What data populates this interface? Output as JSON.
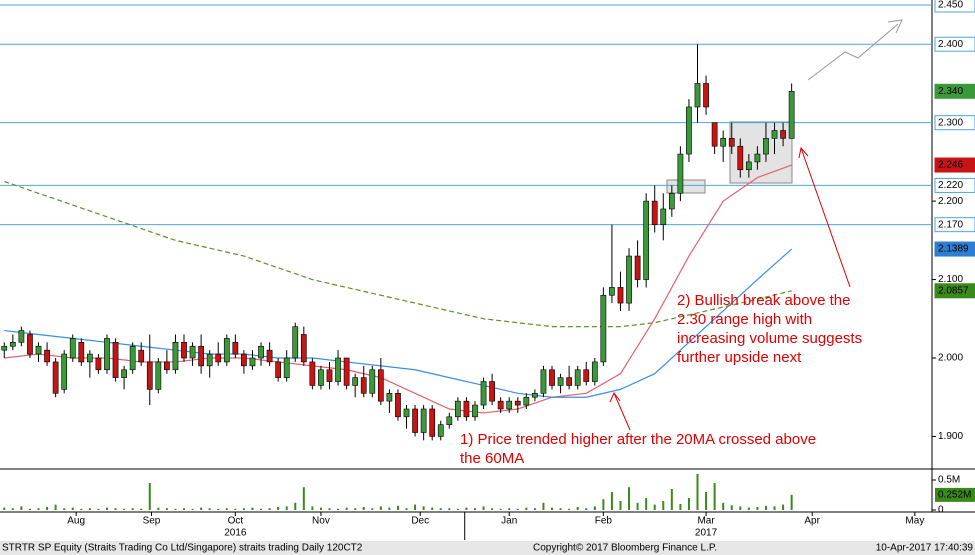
{
  "chart_data": {
    "type": "candlestick",
    "x": [
      0,
      1,
      2,
      3,
      4,
      5,
      6,
      7,
      8,
      9,
      10,
      11,
      12,
      13,
      14,
      15,
      16,
      17,
      18,
      19,
      20,
      21,
      22,
      23,
      24,
      25,
      26,
      27,
      28,
      29,
      30,
      31,
      32,
      33,
      34,
      35,
      36,
      37,
      38,
      39,
      40,
      41,
      42,
      43,
      44,
      45,
      46,
      47,
      48,
      49,
      50,
      51,
      52,
      53,
      54,
      55,
      56,
      57,
      58,
      59,
      60,
      61,
      62,
      63,
      64,
      65,
      66,
      67,
      68,
      69,
      70,
      71,
      72,
      73,
      74,
      75,
      76,
      77,
      78,
      79,
      80,
      81,
      82,
      83,
      84,
      85,
      86,
      87,
      88,
      89,
      90,
      91,
      92
    ],
    "ohlc": [
      [
        2.01,
        2.02,
        2.0,
        2.015
      ],
      [
        2.015,
        2.03,
        2.01,
        2.02
      ],
      [
        2.02,
        2.04,
        2.015,
        2.035
      ],
      [
        2.03,
        2.035,
        2.0,
        2.005
      ],
      [
        2.005,
        2.02,
        1.995,
        2.015
      ],
      [
        2.01,
        2.02,
        1.99,
        1.995
      ],
      [
        1.995,
        2.0,
        1.95,
        1.955
      ],
      [
        1.96,
        2.01,
        1.955,
        2.005
      ],
      [
        2.0,
        2.03,
        1.995,
        2.025
      ],
      [
        2.02,
        2.025,
        1.99,
        1.995
      ],
      [
        1.995,
        2.01,
        1.975,
        2.005
      ],
      [
        2.0,
        2.005,
        1.98,
        1.985
      ],
      [
        1.985,
        2.03,
        1.98,
        2.025
      ],
      [
        2.02,
        2.025,
        1.97,
        1.975
      ],
      [
        1.975,
        1.99,
        1.96,
        1.985
      ],
      [
        1.985,
        2.02,
        1.98,
        2.015
      ],
      [
        2.01,
        2.02,
        1.99,
        1.995
      ],
      [
        1.995,
        2.03,
        1.94,
        1.96
      ],
      [
        1.96,
        2.0,
        1.955,
        1.995
      ],
      [
        1.995,
        2.01,
        1.98,
        1.985
      ],
      [
        1.985,
        2.03,
        1.98,
        2.02
      ],
      [
        2.02,
        2.03,
        1.995,
        2.0
      ],
      [
        2.0,
        2.02,
        1.99,
        2.015
      ],
      [
        2.015,
        2.03,
        1.98,
        1.99
      ],
      [
        1.99,
        2.01,
        1.975,
        2.005
      ],
      [
        2.005,
        2.02,
        1.99,
        1.995
      ],
      [
        1.995,
        2.03,
        1.99,
        2.025
      ],
      [
        2.02,
        2.03,
        2.0,
        2.005
      ],
      [
        2.005,
        2.01,
        1.98,
        1.99
      ],
      [
        1.99,
        2.01,
        1.985,
        2.0
      ],
      [
        2.0,
        2.02,
        1.99,
        2.015
      ],
      [
        2.01,
        2.02,
        1.99,
        1.995
      ],
      [
        1.995,
        2.0,
        1.97,
        1.975
      ],
      [
        1.975,
        2.01,
        1.97,
        2.0
      ],
      [
        2.0,
        2.045,
        1.995,
        2.04
      ],
      [
        2.03,
        2.04,
        1.99,
        1.995
      ],
      [
        1.995,
        2.0,
        1.96,
        1.965
      ],
      [
        1.965,
        1.99,
        1.96,
        1.985
      ],
      [
        1.985,
        1.995,
        1.96,
        1.97
      ],
      [
        1.97,
        2.01,
        1.965,
        2.0
      ],
      [
        2.0,
        2.0,
        1.96,
        1.965
      ],
      [
        1.965,
        1.98,
        1.95,
        1.975
      ],
      [
        1.975,
        1.99,
        1.95,
        1.955
      ],
      [
        1.955,
        1.99,
        1.95,
        1.985
      ],
      [
        1.985,
        2.0,
        1.94,
        1.945
      ],
      [
        1.945,
        1.96,
        1.93,
        1.955
      ],
      [
        1.955,
        1.96,
        1.92,
        1.925
      ],
      [
        1.925,
        1.94,
        1.91,
        1.935
      ],
      [
        1.935,
        1.94,
        1.9,
        1.905
      ],
      [
        1.905,
        1.94,
        1.895,
        1.935
      ],
      [
        1.935,
        1.94,
        1.895,
        1.9
      ],
      [
        1.9,
        1.92,
        1.895,
        1.915
      ],
      [
        1.915,
        1.93,
        1.91,
        1.925
      ],
      [
        1.925,
        1.95,
        1.92,
        1.945
      ],
      [
        1.945,
        1.95,
        1.92,
        1.925
      ],
      [
        1.925,
        1.945,
        1.92,
        1.94
      ],
      [
        1.94,
        1.975,
        1.935,
        1.97
      ],
      [
        1.97,
        1.98,
        1.94,
        1.945
      ],
      [
        1.945,
        1.95,
        1.93,
        1.935
      ],
      [
        1.935,
        1.95,
        1.93,
        1.945
      ],
      [
        1.945,
        1.95,
        1.93,
        1.94
      ],
      [
        1.94,
        1.955,
        1.935,
        1.95
      ],
      [
        1.95,
        1.96,
        1.945,
        1.955
      ],
      [
        1.955,
        1.99,
        1.95,
        1.985
      ],
      [
        1.985,
        1.99,
        1.96,
        1.965
      ],
      [
        1.965,
        1.98,
        1.955,
        1.975
      ],
      [
        1.975,
        1.99,
        1.96,
        1.965
      ],
      [
        1.965,
        1.99,
        1.96,
        1.985
      ],
      [
        1.985,
        1.995,
        1.965,
        1.97
      ],
      [
        1.97,
        2.0,
        1.965,
        1.995
      ],
      [
        1.995,
        2.09,
        1.99,
        2.08
      ],
      [
        2.08,
        2.17,
        2.07,
        2.09
      ],
      [
        2.09,
        2.11,
        2.06,
        2.07
      ],
      [
        2.07,
        2.14,
        2.06,
        2.13
      ],
      [
        2.13,
        2.15,
        2.09,
        2.1
      ],
      [
        2.1,
        2.21,
        2.09,
        2.2
      ],
      [
        2.2,
        2.22,
        2.16,
        2.17
      ],
      [
        2.17,
        2.21,
        2.15,
        2.19
      ],
      [
        2.19,
        2.22,
        2.18,
        2.21
      ],
      [
        2.21,
        2.27,
        2.2,
        2.26
      ],
      [
        2.26,
        2.33,
        2.25,
        2.32
      ],
      [
        2.32,
        2.4,
        2.3,
        2.35
      ],
      [
        2.35,
        2.36,
        2.31,
        2.32
      ],
      [
        2.3,
        2.3,
        2.26,
        2.27
      ],
      [
        2.27,
        2.29,
        2.25,
        2.28
      ],
      [
        2.28,
        2.3,
        2.26,
        2.27
      ],
      [
        2.27,
        2.28,
        2.23,
        2.24
      ],
      [
        2.24,
        2.26,
        2.23,
        2.25
      ],
      [
        2.25,
        2.27,
        2.24,
        2.26
      ],
      [
        2.26,
        2.3,
        2.25,
        2.28
      ],
      [
        2.28,
        2.3,
        2.26,
        2.29
      ],
      [
        2.29,
        2.3,
        2.27,
        2.28
      ],
      [
        2.28,
        2.35,
        2.28,
        2.34
      ]
    ],
    "up_color": "#3a9a3a",
    "down_color": "#c81414",
    "volume": [
      40000,
      30000,
      60000,
      20000,
      30000,
      50000,
      90000,
      30000,
      40000,
      20000,
      30000,
      20000,
      40000,
      30000,
      20000,
      30000,
      20000,
      450000,
      40000,
      30000,
      20000,
      30000,
      20000,
      40000,
      30000,
      20000,
      30000,
      20000,
      30000,
      40000,
      20000,
      30000,
      50000,
      60000,
      120000,
      380000,
      60000,
      40000,
      30000,
      20000,
      40000,
      30000,
      50000,
      30000,
      60000,
      40000,
      70000,
      30000,
      90000,
      60000,
      40000,
      30000,
      30000,
      20000,
      40000,
      30000,
      60000,
      30000,
      20000,
      30000,
      20000,
      40000,
      30000,
      120000,
      40000,
      30000,
      20000,
      50000,
      30000,
      60000,
      180000,
      300000,
      150000,
      380000,
      120000,
      200000,
      90000,
      150000,
      350000,
      100000,
      200000,
      600000,
      300000,
      450000,
      120000,
      80000,
      60000,
      40000,
      50000,
      70000,
      60000,
      90000,
      252000
    ],
    "volume_color": "#3a8a1a",
    "volume_ylim": [
      0,
      600000
    ],
    "volume_yticks": [
      {
        "value": 500000,
        "label": "0.5M"
      },
      0
    ],
    "volume_tag": {
      "value": 252000,
      "label": "0.252M"
    },
    "moving_averages": [
      {
        "color": "#e8606a",
        "dash": false,
        "x": [
          0,
          4,
          8,
          12,
          16,
          20,
          24,
          28,
          32,
          36,
          40,
          44,
          48,
          52,
          56,
          60,
          64,
          68,
          72,
          76,
          80,
          84,
          88,
          92
        ],
        "values": [
          2.0,
          2.005,
          2.0,
          2.0,
          1.995,
          1.995,
          2.0,
          2.0,
          1.995,
          1.99,
          1.985,
          1.975,
          1.955,
          1.935,
          1.93,
          1.935,
          1.95,
          1.955,
          1.98,
          2.05,
          2.13,
          2.2,
          2.23,
          2.246
        ],
        "tag": {
          "value": 2.246,
          "label": "2.246"
        }
      },
      {
        "color": "#3a8fe0",
        "dash": false,
        "x": [
          0,
          4,
          8,
          12,
          16,
          20,
          24,
          28,
          32,
          36,
          40,
          44,
          48,
          52,
          56,
          60,
          64,
          68,
          72,
          76,
          80,
          84,
          88,
          92
        ],
        "values": [
          2.035,
          2.03,
          2.025,
          2.02,
          2.015,
          2.01,
          2.005,
          2.005,
          2.0,
          2.0,
          1.995,
          1.99,
          1.985,
          1.975,
          1.965,
          1.955,
          1.95,
          1.95,
          1.96,
          1.98,
          2.02,
          2.06,
          2.1,
          2.1389
        ],
        "tag": {
          "value": 2.1389,
          "label": "2.1389"
        }
      },
      {
        "color": "#5f8f2a",
        "dash": true,
        "x": [
          0,
          4,
          8,
          12,
          16,
          20,
          24,
          28,
          32,
          36,
          40,
          44,
          48,
          52,
          56,
          60,
          64,
          68,
          72,
          76,
          80,
          84,
          88,
          92
        ],
        "values": [
          2.225,
          2.21,
          2.195,
          2.18,
          2.165,
          2.15,
          2.14,
          2.13,
          2.115,
          2.1,
          2.09,
          2.08,
          2.07,
          2.06,
          2.05,
          2.045,
          2.04,
          2.04,
          2.04,
          2.045,
          2.055,
          2.065,
          2.075,
          2.0857
        ],
        "tag": {
          "value": 2.0857,
          "label": "2.0857"
        }
      }
    ],
    "last_price_tag": {
      "value": 2.34,
      "label": "2.340"
    },
    "levels": [
      {
        "value": 2.45,
        "label": "2.450"
      },
      {
        "value": 2.4,
        "label": "2.400"
      },
      {
        "value": 2.3,
        "label": "2.300"
      },
      {
        "value": 2.22,
        "label": "2.220"
      },
      {
        "value": 2.17,
        "label": "2.170"
      }
    ],
    "ylim": [
      1.8585,
      2.4564
    ],
    "yticks": [
      {
        "value": 1.9,
        "label": "1.900"
      },
      {
        "value": 2.0,
        "label": "2.000"
      },
      {
        "value": 2.1,
        "label": "2.100"
      },
      {
        "value": 2.2,
        "label": "2.200"
      }
    ],
    "xlim": [
      -0.5,
      108.4
    ],
    "xticks": [
      {
        "value": 8.4,
        "label": "Aug"
      },
      {
        "value": 17.2,
        "label": "Sep"
      },
      {
        "value": 27,
        "label": "Oct"
      },
      {
        "value": 37,
        "label": "Nov"
      },
      {
        "value": 48.6,
        "label": "Dec"
      },
      {
        "value": 59,
        "label": "Jan"
      },
      {
        "value": 70,
        "label": "Feb"
      },
      {
        "value": 82,
        "label": "Mar"
      },
      {
        "value": 94.4,
        "label": "Apr"
      },
      {
        "value": 106.4,
        "label": "May"
      }
    ],
    "year_labels": [
      {
        "value": 27,
        "label": "2016"
      },
      {
        "value": 82,
        "label": "2017"
      }
    ],
    "year_break": 53.8,
    "annotations": [
      {
        "lines": [
          "1) Price trended higher after the 20MA crossed above",
          "the 60MA"
        ]
      },
      {
        "lines": [
          "2) Bullish break above the",
          "2.30 range high with",
          "increasing volume suggests",
          "further upside next"
        ]
      }
    ],
    "footer": {
      "left": "STRTR SP Equity (Straits Trading Co Ltd/Singapore) straits trading  Daily 120CT2",
      "center": "Copyright© 2017 Bloomberg Finance L.P.",
      "right": "10-Apr-2017 17:40:39"
    }
  }
}
